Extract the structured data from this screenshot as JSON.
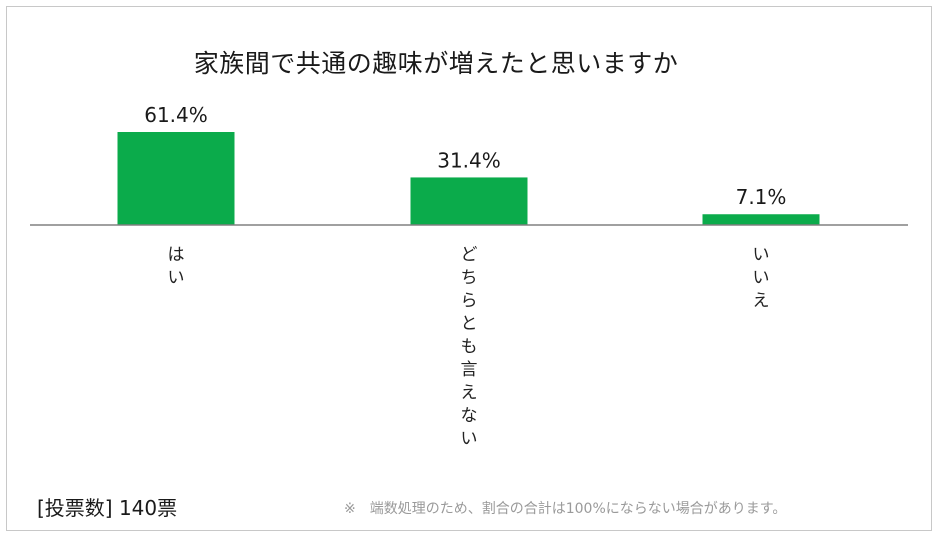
{
  "chart_data": {
    "type": "bar",
    "title": "家族間で共通の趣味が増えたと思いますか",
    "categories": [
      "はい",
      "どちらとも言えない",
      "いいえ"
    ],
    "values": [
      61.4,
      31.4,
      7.1
    ],
    "value_labels": [
      "61.4%",
      "31.4%",
      "7.1%"
    ],
    "unit": "%",
    "ylim": [
      0,
      61.4
    ],
    "grid": false,
    "legend": "none",
    "bar_color": "#0bab4b",
    "axis_color": "#808080"
  },
  "footer": {
    "vote_count": "[投票数] 140票",
    "note": "※　端数処理のため、割合の合計は100%にならない場合があります。"
  }
}
